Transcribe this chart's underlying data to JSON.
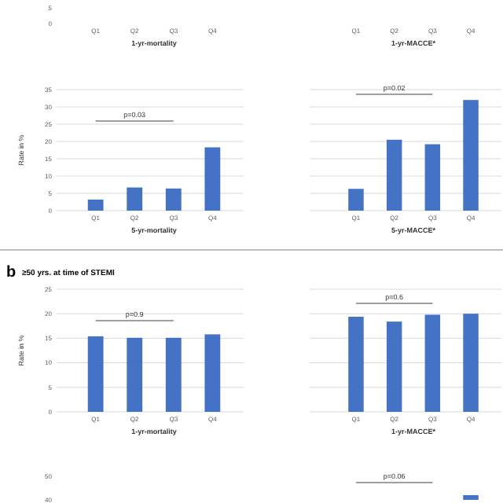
{
  "chart_data": [
    {
      "type": "bar",
      "categories": [
        "Q1",
        "Q2",
        "Q3",
        "Q4"
      ],
      "values": [
        null,
        null,
        null,
        null
      ],
      "ylim": [
        0,
        5
      ],
      "yticks": [
        0,
        5
      ],
      "xlabel": "1-yr-mortality"
    },
    {
      "type": "bar",
      "categories": [
        "Q1",
        "Q2",
        "Q3",
        "Q4"
      ],
      "values": [
        null,
        null,
        null,
        null
      ],
      "ylim": [
        0,
        5
      ],
      "xlabel": "1-yr-MACCE*",
      "tick_labels": "x"
    },
    {
      "type": "bar",
      "categories": [
        "Q1",
        "Q2",
        "Q3",
        "Q4"
      ],
      "values": [
        3.2,
        6.7,
        6.4,
        18.3
      ],
      "color": "#4472c4",
      "ylim": [
        0,
        35
      ],
      "yticks": [
        0,
        5,
        10,
        15,
        20,
        25,
        30,
        35
      ],
      "xlabel": "5-yr-mortality",
      "ylabel": "Rate in %",
      "grid": "y",
      "annotations": [
        "p=0.03"
      ]
    },
    {
      "type": "bar",
      "categories": [
        "Q1",
        "Q2",
        "Q3",
        "Q4"
      ],
      "values": [
        6.3,
        20.5,
        19.2,
        32
      ],
      "color": "#4472c4",
      "ylim": [
        0,
        35
      ],
      "yticks": [
        0,
        5,
        10,
        15,
        20,
        25,
        30,
        35
      ],
      "xlabel": "5-yr-MACCE*",
      "grid": "y",
      "tick_labels": "x",
      "annotations": [
        "p=0.02"
      ]
    },
    {
      "type": "bar",
      "title": "b",
      "subtitle": "≥50 yrs. at time of STEMI",
      "categories": [
        "Q1",
        "Q2",
        "Q3",
        "Q4"
      ],
      "values": [
        15.4,
        15.1,
        15.1,
        15.8
      ],
      "color": "#4472c4",
      "ylim": [
        0,
        25
      ],
      "yticks": [
        0,
        5,
        10,
        15,
        20,
        25
      ],
      "xlabel": "1-yr-mortality",
      "ylabel": "Rate in %",
      "grid": "y",
      "annotations": [
        "p=0.9"
      ]
    },
    {
      "type": "bar",
      "categories": [
        "Q1",
        "Q2",
        "Q3",
        "Q4"
      ],
      "values": [
        19.4,
        18.4,
        19.8,
        20
      ],
      "color": "#4472c4",
      "ylim": [
        0,
        25
      ],
      "yticks": [
        0,
        5,
        10,
        15,
        20,
        25
      ],
      "xlabel": "1-yr-MACCE*",
      "grid": "y",
      "tick_labels": "x",
      "annotations": [
        "p=0.6"
      ]
    },
    {
      "type": "bar",
      "categories": [
        null,
        null,
        null,
        null
      ],
      "values": [
        null,
        null,
        null,
        null
      ],
      "ylim": [
        40,
        50
      ],
      "yticks": [
        40,
        50
      ]
    },
    {
      "type": "bar",
      "categories": [
        null,
        null,
        null,
        null
      ],
      "values": [
        null,
        null,
        null,
        42
      ],
      "color": "#4472c4",
      "ylim": [
        40,
        50
      ],
      "tick_labels": "x",
      "annotations": [
        "p=0.06"
      ]
    }
  ]
}
